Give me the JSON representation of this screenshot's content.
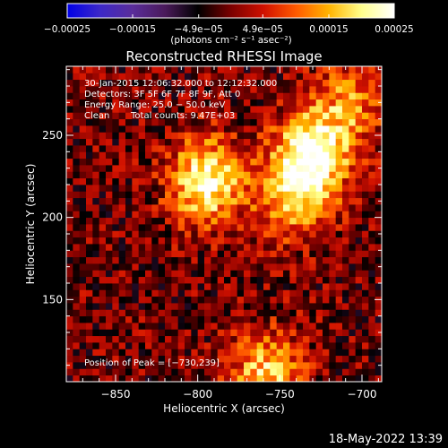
{
  "chart_data": {
    "type": "heatmap",
    "title": "Reconstructed RHESSI Image",
    "xlabel": "Heliocentric X (arcsec)",
    "ylabel": "Heliocentric Y (arcsec)",
    "xlim": [
      -880,
      -688
    ],
    "ylim": [
      100,
      292
    ],
    "x_ticks": [
      -850,
      -800,
      -750,
      -700
    ],
    "x_tick_labels": [
      "−850",
      "−800",
      "−750",
      "−700"
    ],
    "y_ticks": [
      150,
      200,
      250
    ],
    "y_tick_labels": [
      "150",
      "200",
      "250"
    ],
    "colorbar": {
      "min": -0.00025,
      "max": 0.00025,
      "ticks": [
        -0.00025,
        -0.00015,
        -4.9e-05,
        4.9e-05,
        0.00015,
        0.00025
      ],
      "tick_labels": [
        "−0.00025",
        "−0.00015",
        "−4.9e−05",
        "4.9e−05",
        "0.00015",
        "0.00025"
      ],
      "units_label": "(photons cm⁻² s⁻¹ asec⁻²)",
      "colormap": [
        "#0000e6",
        "#3c28c8",
        "#5a2d9a",
        "#4a1a5a",
        "#000000",
        "#7a0000",
        "#d01000",
        "#ff5a00",
        "#ffb400",
        "#ffff8c",
        "#ffffff"
      ]
    },
    "sources": [
      {
        "x": -795,
        "y": 222,
        "peak": 0.00024
      },
      {
        "x": -730,
        "y": 239,
        "peak": 0.00025
      },
      {
        "x": -742,
        "y": 212,
        "peak": 0.00016
      },
      {
        "x": -758,
        "y": 105,
        "peak": 0.00018
      },
      {
        "x": -707,
        "y": 270,
        "peak": 0.00012
      }
    ],
    "annotations": {
      "time": "30-Jan-2015 12:06:32.000 to 12:12:32.000",
      "detectors": "Detectors: 3F 5F 6F 7F 8F 9F, Att 0",
      "energy": "Energy Range: 25.0 − 50.0 keV",
      "algorithm": "Clean",
      "counts": "Total counts: 9.47E+03",
      "peak": "Position of Peak = [−730,239]"
    }
  },
  "footer": {
    "timestamp": "18-May-2022 13:39"
  }
}
